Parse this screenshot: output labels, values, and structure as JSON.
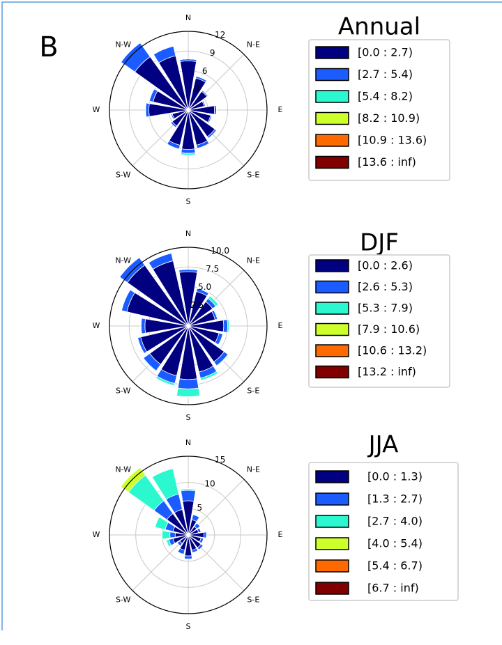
{
  "panel_label": "B",
  "chart_data": [
    {
      "type": "windrose",
      "title": "Annual",
      "categories": [
        "N",
        null,
        "N-E",
        null,
        "E",
        null,
        "S-E",
        null,
        "S",
        null,
        "S-W",
        null,
        "W",
        null,
        "N-W",
        null
      ],
      "ylim": [
        0,
        12
      ],
      "yticks": [
        3,
        6,
        9,
        12
      ],
      "grid": true,
      "series": [
        {
          "name": "[0.0 : 2.7)",
          "color": "#000080",
          "values": [
            7.5,
            5,
            3.5,
            2.5,
            4,
            3.5,
            5,
            5.5,
            6,
            5.5,
            3,
            2.5,
            6,
            5.5,
            10,
            8.5
          ]
        },
        {
          "name": "[2.7 : 5.4)",
          "color": "#1a5cff",
          "values": [
            0.3,
            0.3,
            0.2,
            0.2,
            0.3,
            0.2,
            0.3,
            0.5,
            0.6,
            0.6,
            0.3,
            0.2,
            0.5,
            0.6,
            2.6,
            1.5
          ]
        },
        {
          "name": "[5.4 : 8.2)",
          "color": "#2cf8d0",
          "values": [
            0,
            0,
            0,
            0,
            0,
            0,
            0,
            0.1,
            0.3,
            0.1,
            0,
            0,
            0,
            0,
            0,
            0
          ]
        },
        {
          "name": "[8.2 : 10.9)",
          "color": "#cdff2a",
          "values": [
            0,
            0,
            0,
            0,
            0,
            0,
            0,
            0,
            0,
            0,
            0,
            0,
            0,
            0,
            0,
            0
          ]
        },
        {
          "name": "[10.9 : 13.6)",
          "color": "#ff6a00",
          "values": [
            0,
            0,
            0,
            0,
            0,
            0,
            0,
            0,
            0,
            0,
            0,
            0,
            0,
            0,
            0,
            0
          ]
        },
        {
          "name": "[13.6 : inf)",
          "color": "#800000",
          "values": [
            0,
            0,
            0,
            0,
            0,
            0,
            0,
            0,
            0,
            0,
            0,
            0,
            0,
            0,
            0,
            0
          ]
        }
      ]
    },
    {
      "type": "windrose",
      "title": "DJF",
      "categories": [
        "N",
        null,
        "N-E",
        null,
        "E",
        null,
        "S-E",
        null,
        "S",
        null,
        "S-W",
        null,
        "W",
        null,
        "N-W",
        null
      ],
      "ylim": [
        0,
        10
      ],
      "yticks": [
        2.5,
        {
          "value": 5,
          "label": "5.0"
        },
        7.5,
        {
          "value": 10,
          "label": "10.0"
        }
      ],
      "grid": true,
      "series": [
        {
          "name": "[0.0 : 2.6)",
          "color": "#000080",
          "values": [
            6.9,
            4.5,
            3.8,
            3.5,
            4.5,
            4,
            5.6,
            6,
            6.8,
            6.5,
            6,
            6.2,
            5.5,
            8,
            9.5,
            8.5
          ]
        },
        {
          "name": "[2.6 : 5.3)",
          "color": "#1a5cff",
          "values": [
            0.3,
            0.4,
            0.5,
            0.3,
            0.5,
            0.5,
            0.6,
            0.8,
            1.2,
            1,
            1,
            0.4,
            0.5,
            0.7,
            1.2,
            1
          ]
        },
        {
          "name": "[5.3 : 7.9)",
          "color": "#2cf8d0",
          "values": [
            0,
            0.1,
            0.4,
            0.1,
            0.2,
            0.1,
            0.1,
            0.3,
            1,
            0.3,
            0.1,
            0,
            0,
            0,
            0,
            0
          ]
        },
        {
          "name": "[7.9 : 10.6)",
          "color": "#cdff2a",
          "values": [
            0,
            0,
            0,
            0,
            0,
            0,
            0,
            0,
            0,
            0,
            0,
            0,
            0,
            0,
            0,
            0
          ]
        },
        {
          "name": "[10.6 : 13.2)",
          "color": "#ff6a00",
          "values": [
            0,
            0,
            0,
            0,
            0,
            0,
            0,
            0,
            0,
            0,
            0,
            0,
            0,
            0,
            0,
            0
          ]
        },
        {
          "name": "[13.2 : inf)",
          "color": "#800000",
          "values": [
            0,
            0,
            0,
            0,
            0,
            0,
            0,
            0,
            0,
            0,
            0,
            0,
            0,
            0,
            0,
            0
          ]
        }
      ]
    },
    {
      "type": "windrose",
      "title": "JJA",
      "categories": [
        "N",
        null,
        "N-E",
        null,
        "E",
        null,
        "S-E",
        null,
        "S",
        null,
        "S-W",
        null,
        "W",
        null,
        "N-W",
        null
      ],
      "ylim": [
        0,
        15
      ],
      "yticks": [
        5,
        10,
        15
      ],
      "grid": true,
      "series": [
        {
          "name": "[0.0 : 1.3)",
          "color": "#000080",
          "values": [
            6.5,
            3,
            2,
            2,
            3,
            2.5,
            3,
            3,
            4,
            3,
            2,
            3,
            2.5,
            3,
            5,
            5
          ]
        },
        {
          "name": "[1.3 : 2.7)",
          "color": "#1a5cff",
          "values": [
            2,
            1,
            0.8,
            0.5,
            0.5,
            0.5,
            0.5,
            0.5,
            0.6,
            0.8,
            0.6,
            0.8,
            1,
            1.5,
            3,
            3
          ]
        },
        {
          "name": "[2.7 : 4.0)",
          "color": "#2cf8d0",
          "values": [
            0.3,
            0,
            0,
            0,
            0,
            0,
            0,
            0,
            0,
            0,
            0,
            0.5,
            1.5,
            2,
            6,
            5
          ]
        },
        {
          "name": "[4.0 : 5.4)",
          "color": "#cdff2a",
          "values": [
            0,
            0,
            0,
            0,
            0,
            0,
            0,
            0,
            0,
            0,
            0,
            0,
            0,
            0,
            1.8,
            0
          ]
        },
        {
          "name": "[5.4 : 6.7)",
          "color": "#ff6a00",
          "values": [
            0,
            0,
            0,
            0,
            0,
            0,
            0,
            0,
            0,
            0,
            0,
            0,
            0,
            0,
            0,
            0
          ]
        },
        {
          "name": "[6.7 : inf)",
          "color": "#800000",
          "values": [
            0,
            0,
            0,
            0,
            0,
            0,
            0,
            0,
            0,
            0,
            0,
            0,
            0,
            0,
            0,
            0
          ]
        }
      ]
    }
  ]
}
